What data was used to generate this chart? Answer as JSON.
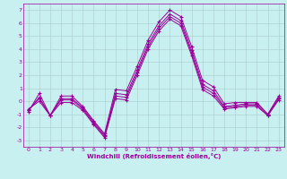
{
  "xlabel": "Windchill (Refroidissement éolien,°C)",
  "background_color": "#c8f0f0",
  "grid_color": "#aacccc",
  "line_color": "#990099",
  "x_values": [
    0,
    1,
    2,
    3,
    4,
    5,
    6,
    7,
    8,
    9,
    10,
    11,
    12,
    13,
    14,
    15,
    16,
    17,
    18,
    19,
    20,
    21,
    22,
    23
  ],
  "series1": [
    -0.8,
    0.6,
    -1.1,
    0.4,
    0.4,
    -0.4,
    -1.5,
    -2.5,
    0.9,
    0.8,
    2.7,
    4.7,
    6.1,
    7.0,
    6.5,
    4.2,
    1.6,
    1.1,
    -0.2,
    -0.1,
    -0.1,
    -0.1,
    -1.0,
    0.4
  ],
  "series2": [
    -0.7,
    0.3,
    -1.1,
    0.2,
    0.2,
    -0.5,
    -1.6,
    -2.6,
    0.6,
    0.5,
    2.4,
    4.4,
    5.8,
    6.7,
    6.2,
    3.9,
    1.3,
    0.8,
    -0.4,
    -0.3,
    -0.2,
    -0.2,
    -1.0,
    0.3
  ],
  "series3": [
    -0.7,
    0.2,
    -1.1,
    0.1,
    0.1,
    -0.6,
    -1.7,
    -2.7,
    0.4,
    0.3,
    2.2,
    4.2,
    5.6,
    6.5,
    6.0,
    3.7,
    1.1,
    0.6,
    -0.5,
    -0.4,
    -0.3,
    -0.3,
    -1.1,
    0.2
  ],
  "series4": [
    -0.6,
    0.0,
    -1.1,
    -0.1,
    -0.1,
    -0.7,
    -1.8,
    -2.8,
    0.2,
    0.1,
    2.0,
    4.0,
    5.4,
    6.3,
    5.8,
    3.5,
    0.9,
    0.4,
    -0.6,
    -0.5,
    -0.4,
    -0.4,
    -1.1,
    0.1
  ],
  "xlim": [
    -0.5,
    23.5
  ],
  "ylim": [
    -3.5,
    7.5
  ],
  "yticks": [
    -3,
    -2,
    -1,
    0,
    1,
    2,
    3,
    4,
    5,
    6,
    7
  ],
  "xticks": [
    0,
    1,
    2,
    3,
    4,
    5,
    6,
    7,
    8,
    9,
    10,
    11,
    12,
    13,
    14,
    15,
    16,
    17,
    18,
    19,
    20,
    21,
    22,
    23
  ]
}
